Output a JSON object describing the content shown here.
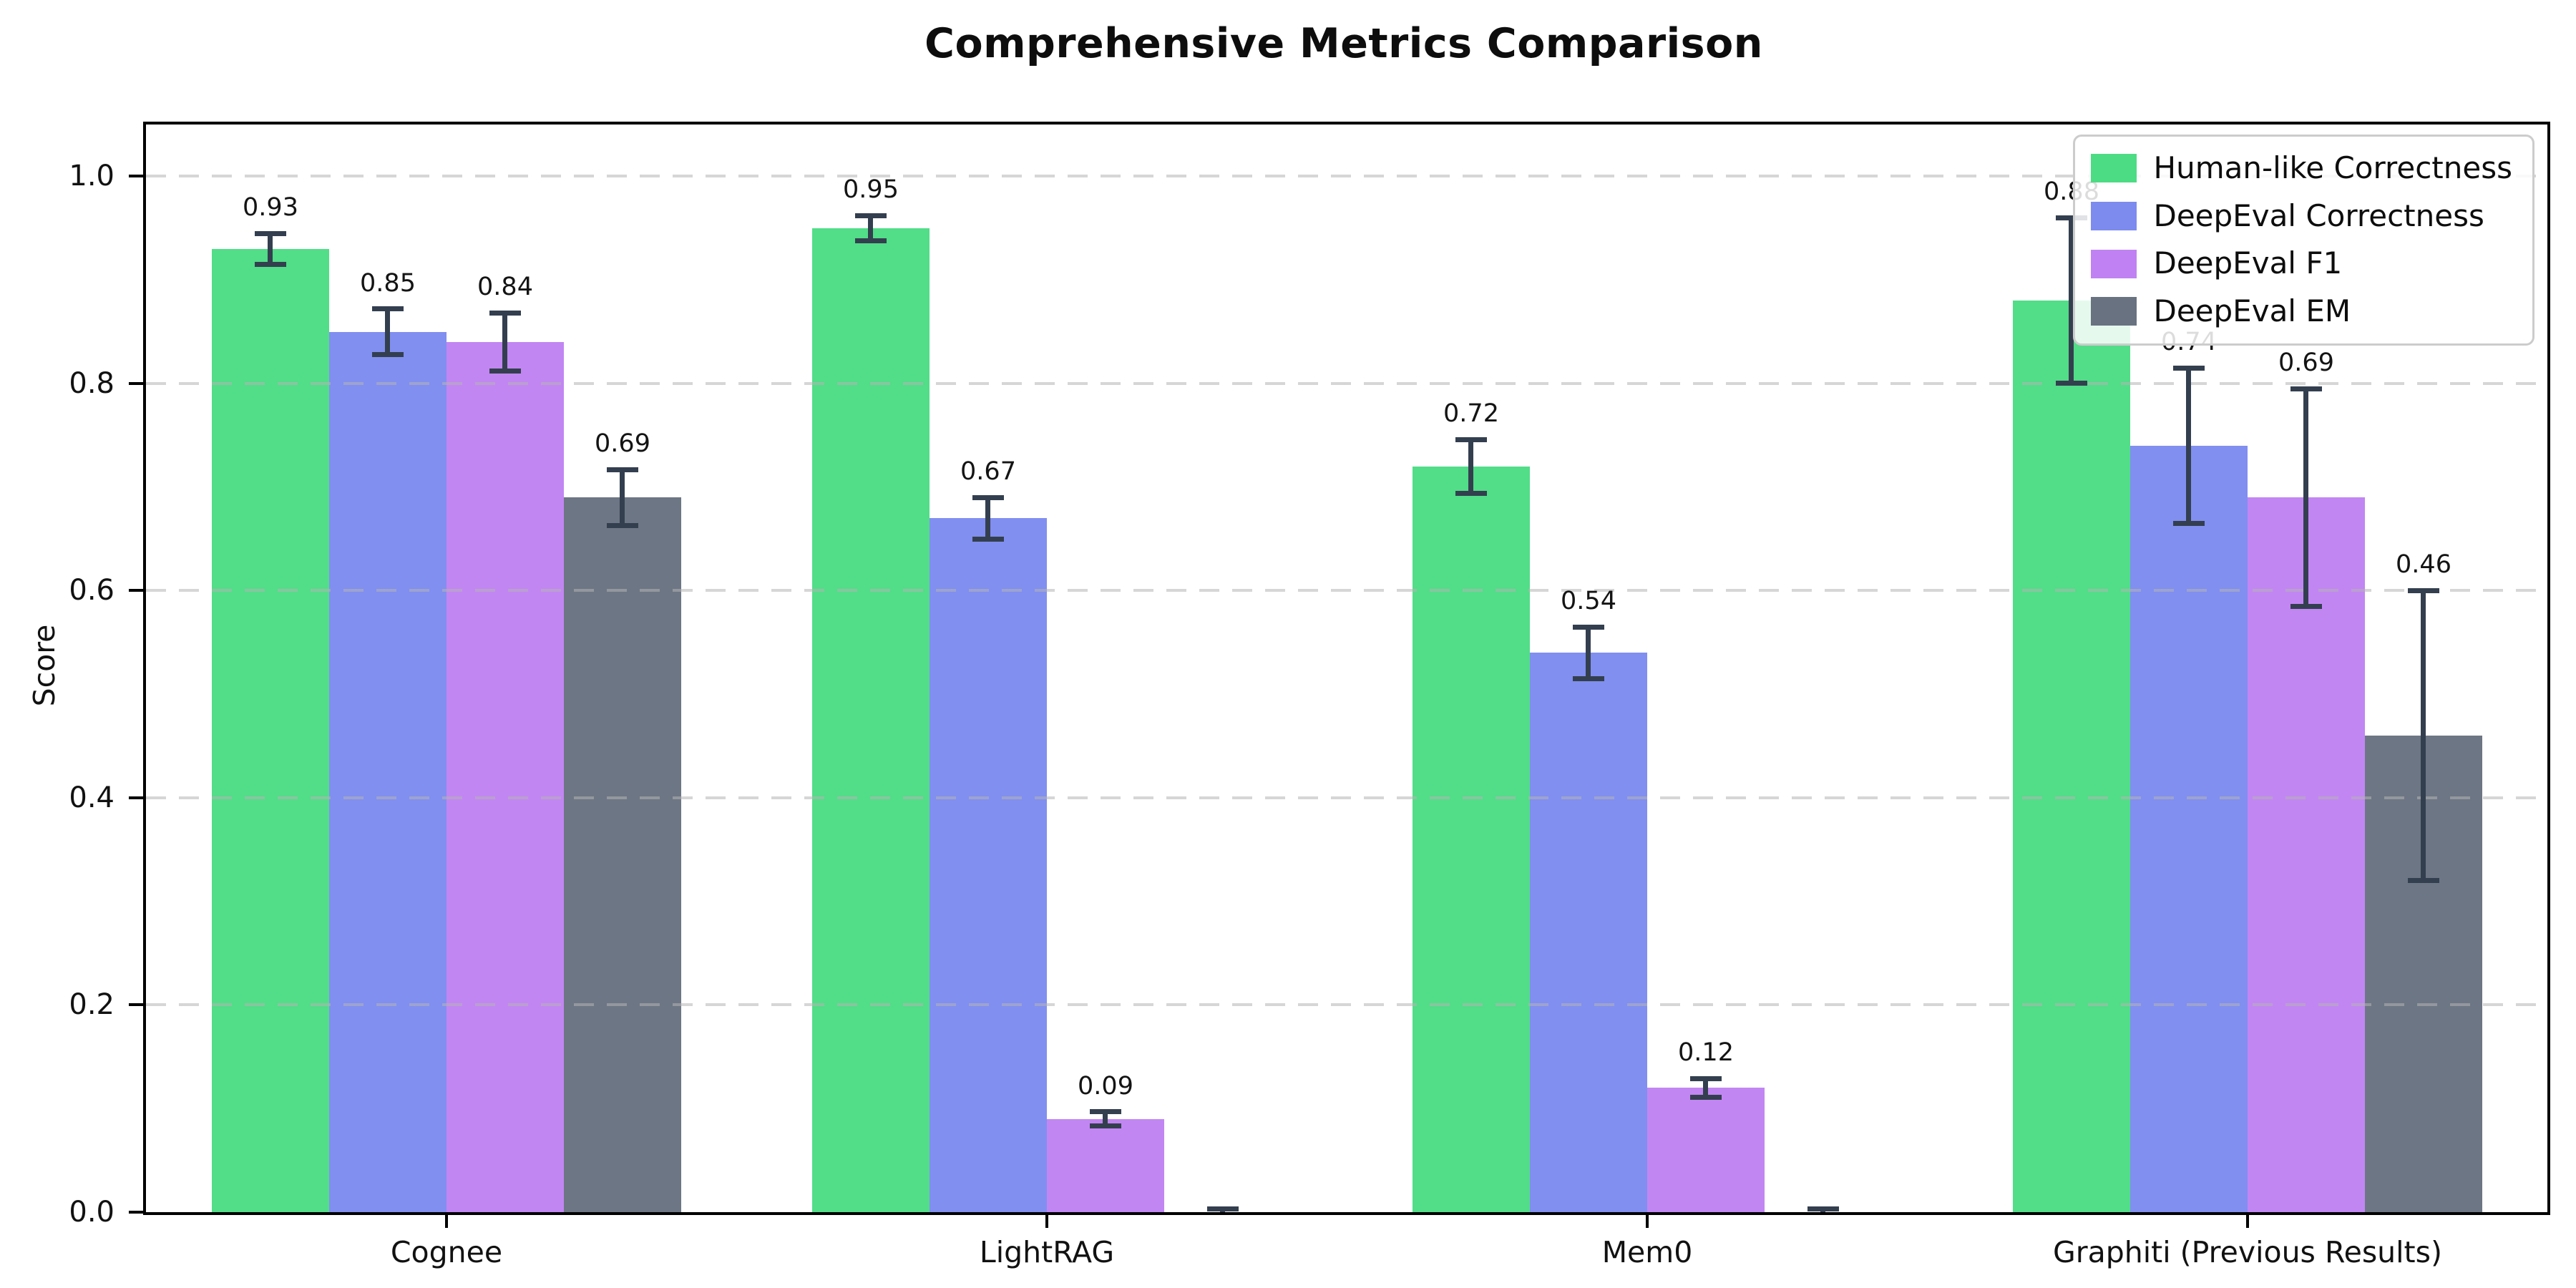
{
  "title": "Comprehensive Metrics Comparison",
  "chart_data": {
    "type": "bar",
    "title": "Comprehensive Metrics Comparison",
    "xlabel": "",
    "ylabel": "Score",
    "ylim": [
      0,
      1.05
    ],
    "yticks": [
      0.0,
      0.2,
      0.4,
      0.6,
      0.8,
      1.0
    ],
    "ytick_labels": [
      "0.0",
      "0.2",
      "0.4",
      "0.6",
      "0.8",
      "1.0"
    ],
    "grid": "horizontal dashed light-gray at each y tick",
    "legend_position": "upper right",
    "categories": [
      "Cognee",
      "LightRAG",
      "Mem0",
      "Graphiti (Previous Results)"
    ],
    "series": [
      {
        "name": "Human-like Correctness",
        "color": "#4CDC84",
        "values": [
          0.93,
          0.95,
          0.72,
          0.88
        ],
        "errors": [
          0.015,
          0.012,
          0.026,
          0.08
        ],
        "labels": [
          "0.93",
          "0.95",
          "0.72",
          "0.88"
        ]
      },
      {
        "name": "DeepEval Correctness",
        "color": "#7D8BEF",
        "values": [
          0.85,
          0.67,
          0.54,
          0.74
        ],
        "errors": [
          0.022,
          0.02,
          0.025,
          0.075
        ],
        "labels": [
          "0.85",
          "0.67",
          "0.54",
          "0.74"
        ]
      },
      {
        "name": "DeepEval F1",
        "color": "#C082F3",
        "values": [
          0.84,
          0.09,
          0.12,
          0.69
        ],
        "errors": [
          0.028,
          0.007,
          0.009,
          0.105
        ],
        "labels": [
          "0.84",
          "0.09",
          "0.12",
          "0.69"
        ]
      },
      {
        "name": "DeepEval EM",
        "color": "#687280",
        "values": [
          0.69,
          0.0,
          0.0,
          0.46
        ],
        "errors": [
          0.027,
          0.003,
          0.003,
          0.14
        ],
        "labels": [
          "0.69",
          null,
          null,
          "0.46"
        ]
      }
    ],
    "error_bar_color": "#333F4F"
  }
}
